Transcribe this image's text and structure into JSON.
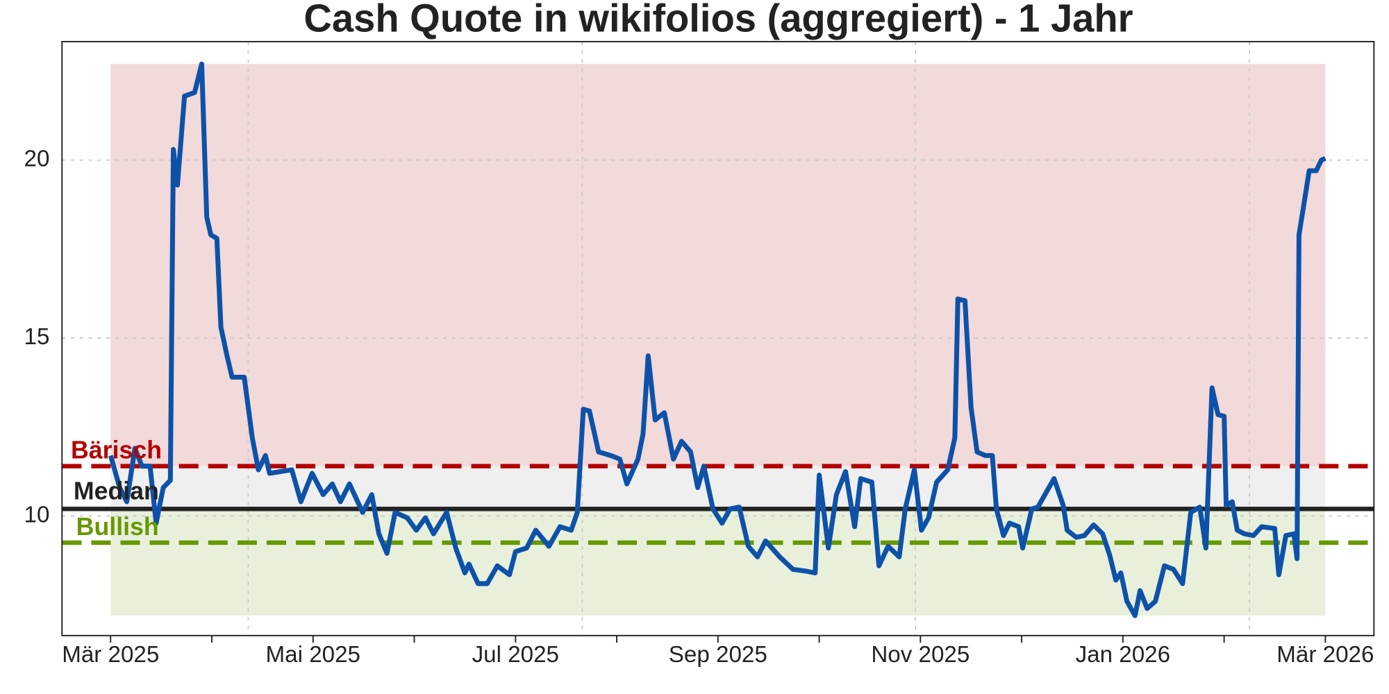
{
  "chart_data": {
    "type": "line",
    "title": "Cash Quote in wikifolios (aggregiert) - 1 Jahr",
    "xlim": [
      -0.48,
      12.48
    ],
    "xticks": [
      {
        "value": 0,
        "label": "Mär 2025"
      },
      {
        "value": 2,
        "label": "Mai 2025"
      },
      {
        "value": 4,
        "label": "Jul 2025"
      },
      {
        "value": 6,
        "label": "Sep 2025"
      },
      {
        "value": 8,
        "label": "Nov 2025"
      },
      {
        "value": 10,
        "label": "Jan 2026"
      },
      {
        "value": 12,
        "label": "Mär 2026"
      }
    ],
    "xminorticks": [
      1,
      3,
      5,
      7,
      9,
      11
    ],
    "xgrid": [
      1.36,
      4.66,
      7.95,
      11.25
    ],
    "ylim": [
      6.64,
      23.33
    ],
    "yticks": [
      10,
      15,
      20
    ],
    "grid": true,
    "band_colors": [
      "#f2d9da",
      "#efefef",
      "#e8f0dc"
    ],
    "reference_lines": [
      {
        "label": "Bärisch",
        "value": 11.4,
        "color": "#b30000",
        "dashed": true
      },
      {
        "label": "Median",
        "value": 10.2,
        "color": "#222222",
        "dashed": false
      },
      {
        "label": "Bullish",
        "value": 9.25,
        "color": "#669900",
        "dashed": true
      }
    ],
    "series": [
      {
        "name": "Cash Quote",
        "color": "#0d52a8",
        "x": [
          0,
          0.09,
          0.16,
          0.24,
          0.31,
          0.39,
          0.45,
          0.52,
          0.59,
          0.62,
          0.66,
          0.73,
          0.83,
          0.9,
          0.95,
          0.99,
          1.05,
          1.09,
          1.15,
          1.2,
          1.32,
          1.4,
          1.46,
          1.53,
          1.57,
          1.79,
          1.88,
          1.99,
          2.1,
          2.19,
          2.27,
          2.36,
          2.49,
          2.58,
          2.65,
          2.73,
          2.81,
          2.93,
          3.02,
          3.11,
          3.19,
          3.32,
          3.41,
          3.5,
          3.54,
          3.63,
          3.72,
          3.82,
          3.94,
          4.0,
          4.11,
          4.2,
          4.33,
          4.44,
          4.55,
          4.61,
          4.67,
          4.73,
          4.82,
          4.94,
          5.03,
          5.1,
          5.21,
          5.26,
          5.31,
          5.38,
          5.47,
          5.56,
          5.64,
          5.73,
          5.8,
          5.86,
          5.95,
          6.04,
          6.12,
          6.21,
          6.3,
          6.39,
          6.47,
          6.61,
          6.74,
          6.87,
          6.96,
          7.0,
          7.09,
          7.17,
          7.26,
          7.35,
          7.41,
          7.52,
          7.59,
          7.68,
          7.79,
          7.85,
          7.94,
          8.01,
          8.08,
          8.16,
          8.27,
          8.34,
          8.37,
          8.44,
          8.5,
          8.56,
          8.64,
          8.71,
          8.75,
          8.82,
          8.88,
          8.97,
          9.01,
          9.1,
          9.16,
          9.23,
          9.32,
          9.41,
          9.45,
          9.54,
          9.62,
          9.71,
          9.8,
          9.87,
          9.93,
          9.98,
          10.04,
          10.12,
          10.17,
          10.24,
          10.32,
          10.41,
          10.5,
          10.59,
          10.67,
          10.76,
          10.82,
          10.88,
          10.94,
          11.0,
          11.02,
          11.08,
          11.13,
          11.2,
          11.29,
          11.37,
          11.5,
          11.54,
          11.61,
          11.69,
          11.72,
          11.74,
          11.79,
          11.84,
          11.91,
          11.96,
          12.0
        ],
        "values": [
          11.7,
          10.8,
          10.4,
          11.9,
          11.4,
          11.4,
          9.8,
          10.8,
          11.0,
          20.3,
          19.3,
          21.8,
          21.9,
          22.7,
          18.4,
          17.9,
          17.8,
          15.3,
          14.5,
          13.9,
          13.9,
          12.2,
          11.3,
          11.7,
          11.2,
          11.3,
          10.4,
          11.2,
          10.6,
          10.9,
          10.4,
          10.9,
          10.1,
          10.6,
          9.5,
          8.95,
          10.1,
          9.95,
          9.6,
          9.95,
          9.5,
          10.1,
          9.1,
          8.4,
          8.65,
          8.1,
          8.1,
          8.6,
          8.35,
          9.0,
          9.1,
          9.6,
          9.15,
          9.7,
          9.6,
          10.1,
          13.0,
          12.95,
          11.8,
          11.7,
          11.6,
          10.9,
          11.6,
          12.3,
          14.5,
          12.7,
          12.9,
          11.6,
          12.1,
          11.8,
          10.8,
          11.4,
          10.2,
          9.8,
          10.2,
          10.25,
          9.15,
          8.85,
          9.3,
          8.85,
          8.5,
          8.45,
          8.4,
          11.15,
          9.1,
          10.6,
          11.25,
          9.7,
          11.05,
          10.95,
          8.6,
          9.15,
          8.85,
          10.2,
          11.3,
          9.6,
          9.95,
          10.95,
          11.3,
          12.2,
          16.1,
          16.05,
          13.05,
          11.8,
          11.7,
          11.7,
          10.2,
          9.45,
          9.8,
          9.7,
          9.1,
          10.2,
          10.25,
          10.6,
          11.05,
          10.3,
          9.6,
          9.4,
          9.45,
          9.75,
          9.5,
          8.9,
          8.2,
          8.4,
          7.6,
          7.2,
          7.9,
          7.4,
          7.6,
          8.6,
          8.5,
          8.1,
          10.1,
          10.25,
          9.1,
          13.6,
          12.85,
          12.8,
          10.3,
          10.4,
          9.6,
          9.5,
          9.45,
          9.7,
          9.65,
          8.35,
          9.45,
          9.5,
          8.8,
          17.9,
          18.8,
          19.7,
          19.7,
          20.0,
          20.05
        ]
      }
    ]
  }
}
